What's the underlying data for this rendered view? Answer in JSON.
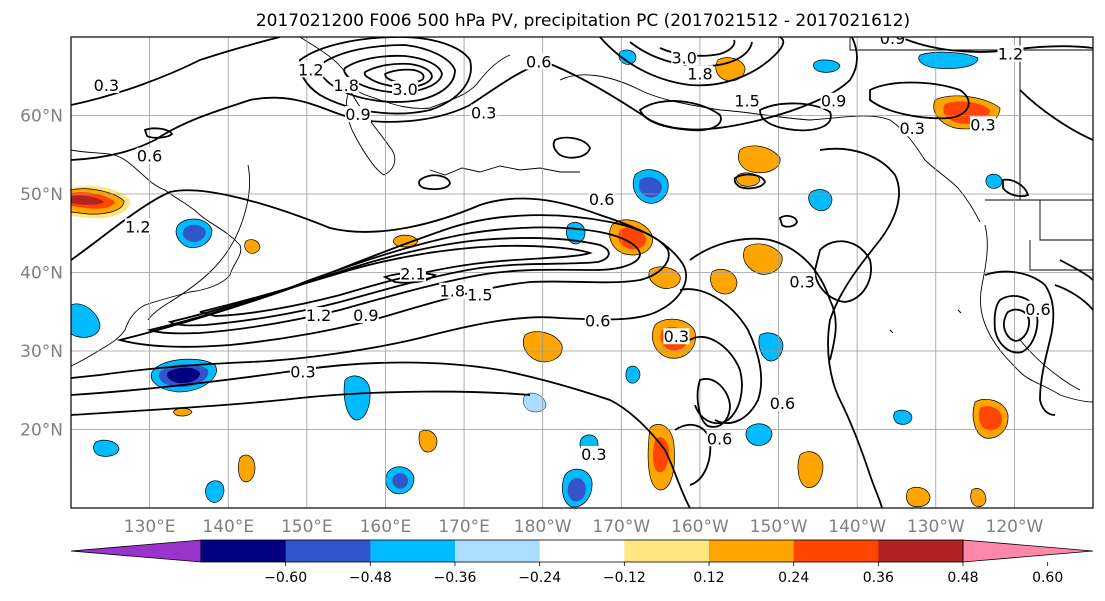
{
  "title": "2017021200 F006 500 hPa PV, precipitation PC (2017021512 - 2017021612)",
  "map": {
    "lon_range": [
      120,
      250
    ],
    "lat_range": [
      10,
      70
    ],
    "lon_ticks": [
      {
        "lon": 130,
        "label": "130°E"
      },
      {
        "lon": 140,
        "label": "140°E"
      },
      {
        "lon": 150,
        "label": "150°E"
      },
      {
        "lon": 160,
        "label": "160°E"
      },
      {
        "lon": 170,
        "label": "170°E"
      },
      {
        "lon": 180,
        "label": "180°W"
      },
      {
        "lon": 190,
        "label": "170°W"
      },
      {
        "lon": 200,
        "label": "160°W"
      },
      {
        "lon": 210,
        "label": "150°W"
      },
      {
        "lon": 220,
        "label": "140°W"
      },
      {
        "lon": 230,
        "label": "130°W"
      },
      {
        "lon": 240,
        "label": "120°W"
      }
    ],
    "lat_ticks": [
      {
        "lat": 20,
        "label": "20°N"
      },
      {
        "lat": 30,
        "label": "30°N"
      },
      {
        "lat": 40,
        "label": "40°N"
      },
      {
        "lat": 50,
        "label": "50°N"
      },
      {
        "lat": 60,
        "label": "60°N"
      }
    ],
    "contour_labels": [
      {
        "text": "0.3",
        "lon": 124.5,
        "lat": 63.5
      },
      {
        "text": "1.2",
        "lon": 150.5,
        "lat": 65.5
      },
      {
        "text": "1.8",
        "lon": 155,
        "lat": 63.5
      },
      {
        "text": "3.0",
        "lon": 162.5,
        "lat": 63.0
      },
      {
        "text": "0.9",
        "lon": 156.5,
        "lat": 59.8
      },
      {
        "text": "0.6",
        "lon": 179.5,
        "lat": 66.5
      },
      {
        "text": "0.3",
        "lon": 172.5,
        "lat": 60.0
      },
      {
        "text": "3.0",
        "lon": 198,
        "lat": 67.0
      },
      {
        "text": "1.8",
        "lon": 200,
        "lat": 65.0
      },
      {
        "text": "1.5",
        "lon": 206,
        "lat": 61.5
      },
      {
        "text": "0.9",
        "lon": 217,
        "lat": 61.5
      },
      {
        "text": "0.9",
        "lon": 224.5,
        "lat": 69.5
      },
      {
        "text": "1.2",
        "lon": 239.5,
        "lat": 67.5
      },
      {
        "text": "0.3",
        "lon": 227,
        "lat": 58.0
      },
      {
        "text": "0.3",
        "lon": 236,
        "lat": 58.5
      },
      {
        "text": "0.6",
        "lon": 130,
        "lat": 54.5
      },
      {
        "text": "0.6",
        "lon": 187.5,
        "lat": 49.0
      },
      {
        "text": "1.2",
        "lon": 128.5,
        "lat": 45.5
      },
      {
        "text": "2.1",
        "lon": 163.5,
        "lat": 39.5
      },
      {
        "text": "1.8",
        "lon": 168.5,
        "lat": 37.3
      },
      {
        "text": "1.5",
        "lon": 172,
        "lat": 36.8
      },
      {
        "text": "1.2",
        "lon": 151.5,
        "lat": 34.2
      },
      {
        "text": "0.9",
        "lon": 157.5,
        "lat": 34.2
      },
      {
        "text": "0.6",
        "lon": 187,
        "lat": 33.5
      },
      {
        "text": "0.3",
        "lon": 197,
        "lat": 31.5
      },
      {
        "text": "0.3",
        "lon": 213,
        "lat": 38.5
      },
      {
        "text": "0.3",
        "lon": 149.5,
        "lat": 27.0
      },
      {
        "text": "0.6",
        "lon": 210.5,
        "lat": 23.0
      },
      {
        "text": "0.6",
        "lon": 202.5,
        "lat": 18.5
      },
      {
        "text": "0.3",
        "lon": 186.5,
        "lat": 16.5
      },
      {
        "text": "0.6",
        "lon": 243,
        "lat": 35.0
      }
    ]
  },
  "colorbar": {
    "levels": [
      "−0.60",
      "−0.48",
      "−0.36",
      "−0.24",
      "−0.12",
      "0.12",
      "0.24",
      "0.36",
      "0.48",
      "0.60"
    ],
    "colors": [
      "#9933cc",
      "#000080",
      "#3355cc",
      "#00bbff",
      "#aaddff",
      "#ffffff",
      "#ffe680",
      "#ffa500",
      "#ff4500",
      "#b22222",
      "#ff88aa"
    ]
  }
}
